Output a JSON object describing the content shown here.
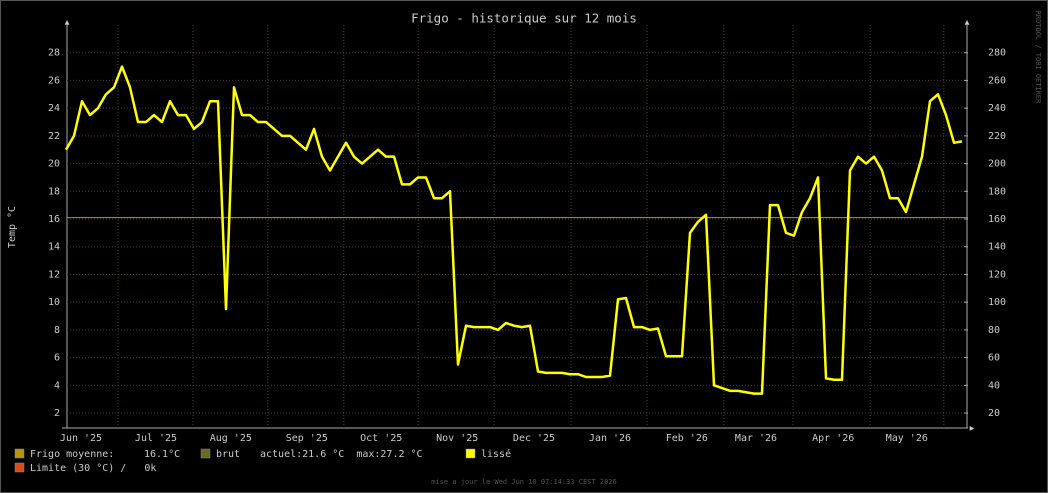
{
  "chart_data": {
    "type": "line",
    "title": "Frigo - historique sur 12 mois",
    "y_label": "Temp °C",
    "watermark": "RRDTOOL / TOBI OETIKER",
    "footer": "mise a jour le Wed Jun 10 07:14:33 CEST 2026",
    "xlim": [
      -0.5,
      112.75
    ],
    "xticks": [
      {
        "value": 1.875,
        "label": "Jun '25"
      },
      {
        "value": 11.25,
        "label": "Jul '25"
      },
      {
        "value": 20.6,
        "label": "Aug '25"
      },
      {
        "value": 30.1,
        "label": "Sep '25"
      },
      {
        "value": 39.4,
        "label": "Oct '25"
      },
      {
        "value": 48.9,
        "label": "Nov '25"
      },
      {
        "value": 58.5,
        "label": "Dec '25"
      },
      {
        "value": 68,
        "label": "Jan '26"
      },
      {
        "value": 77.6,
        "label": "Feb '26"
      },
      {
        "value": 86.25,
        "label": "Mar '26"
      },
      {
        "value": 95.9,
        "label": "Apr '26"
      },
      {
        "value": 105.1,
        "label": "May '26"
      }
    ],
    "ylim": [
      0.92,
      30
    ],
    "yticks": [
      2,
      4,
      6,
      8,
      10,
      12,
      14,
      16,
      18,
      20,
      22,
      24,
      26,
      28
    ],
    "y2lim": [
      9.2,
      300
    ],
    "y2ticks": [
      20,
      40,
      60,
      80,
      100,
      120,
      140,
      160,
      180,
      200,
      220,
      240,
      260,
      280
    ],
    "grid": true,
    "series": [
      {
        "name": "lissé",
        "color": "#ffff00",
        "values": [
          21,
          22,
          24.5,
          23.5,
          24,
          25,
          25.5,
          27,
          25.5,
          23,
          23,
          23.5,
          23,
          24.5,
          23.5,
          23.5,
          22.5,
          23,
          24.5,
          24.5,
          9.5,
          25.5,
          23.5,
          23.5,
          23,
          23,
          22.5,
          22,
          22,
          21.5,
          21,
          22.5,
          20.5,
          19.5,
          20.5,
          21.5,
          20.5,
          20,
          20.5,
          21,
          20.5,
          20.5,
          18.5,
          18.5,
          19,
          19,
          17.5,
          17.5,
          18,
          5.5,
          8.3,
          8.2,
          8.2,
          8.2,
          8,
          8.5,
          8.3,
          8.2,
          8.3,
          5,
          4.9,
          4.9,
          4.9,
          4.8,
          4.8,
          4.6,
          4.6,
          4.6,
          4.7,
          10.2,
          10.3,
          8.2,
          8.2,
          8,
          8.1,
          6.1,
          6.1,
          6.1,
          15,
          15.8,
          16.3,
          4,
          3.8,
          3.6,
          3.6,
          3.5,
          3.4,
          3.4,
          17,
          17,
          15,
          14.8,
          16.5,
          17.5,
          19,
          4.5,
          4.4,
          4.4,
          19.5,
          20.5,
          20,
          20.5,
          19.5,
          17.5,
          17.5,
          16.5,
          18.5,
          20.5,
          24.5,
          25,
          23.5,
          21.5,
          21.6
        ]
      }
    ],
    "mean": {
      "name": "Frigo moyenne:",
      "value": 16.1,
      "value_label": "16.1°C",
      "color": "#b8960c"
    },
    "raw": {
      "name": "brut",
      "stats": "actuel:21.6 °C  max:27.2 °C",
      "color": "#6b6b1e"
    },
    "limit": {
      "name": "Limite (30 °C) /   0k",
      "color": "#e04a1a"
    }
  }
}
